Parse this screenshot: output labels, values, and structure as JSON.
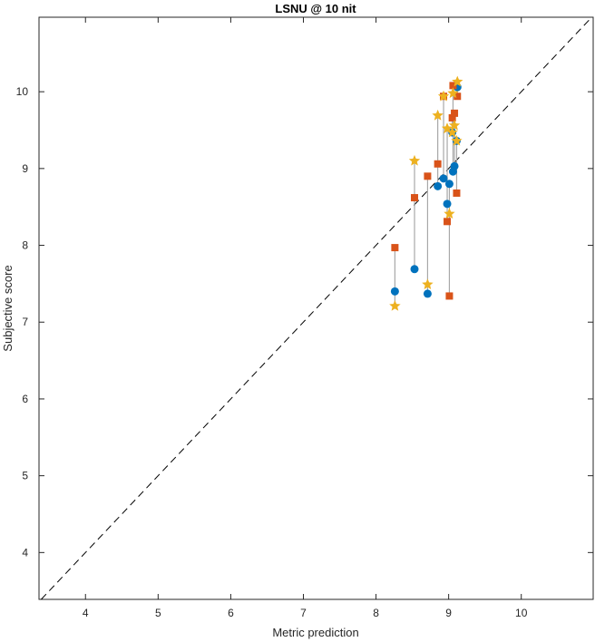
{
  "chart_data": {
    "type": "scatter",
    "title": "LSNU @ 10 nit",
    "xlabel": "Metric prediction",
    "ylabel": "Subjective score",
    "xlim": [
      3.36,
      10.99
    ],
    "ylim": [
      3.39,
      10.97
    ],
    "xticks": [
      4,
      5,
      6,
      7,
      8,
      9,
      10
    ],
    "yticks": [
      4,
      5,
      6,
      7,
      8,
      9,
      10
    ],
    "grid": false,
    "reference_line": "y = x (dashed)",
    "colors": {
      "circle": "#0072BD",
      "square": "#D95319",
      "star": "#EDB120",
      "connector": "#A8A8A8"
    },
    "x": [
      8.26,
      8.53,
      8.71,
      8.85,
      8.93,
      8.98,
      9.01,
      9.05,
      9.06,
      9.08,
      9.11,
      9.12
    ],
    "series": [
      {
        "marker": "circle",
        "values": [
          7.4,
          7.69,
          7.37,
          8.77,
          8.87,
          8.54,
          8.8,
          9.47,
          8.96,
          9.03,
          9.36,
          10.06
        ]
      },
      {
        "marker": "square",
        "values": [
          7.97,
          8.62,
          8.9,
          9.06,
          9.94,
          8.31,
          7.34,
          9.66,
          10.08,
          9.72,
          8.68,
          9.94
        ]
      },
      {
        "marker": "star",
        "values": [
          7.21,
          9.1,
          7.49,
          9.69,
          9.94,
          9.52,
          8.41,
          9.47,
          9.98,
          9.56,
          9.36,
          10.13
        ]
      }
    ]
  }
}
